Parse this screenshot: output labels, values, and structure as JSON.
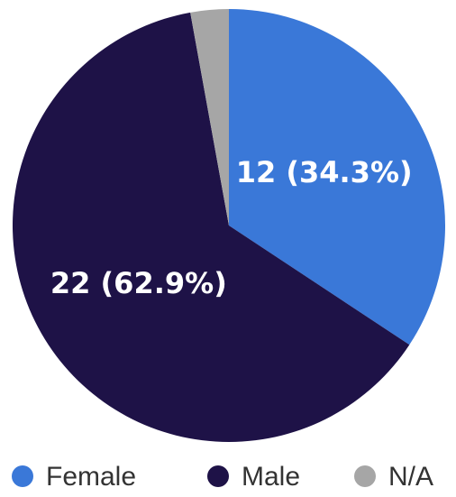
{
  "chart_data": {
    "type": "pie",
    "categories": [
      "Female",
      "Male",
      "N/A"
    ],
    "values": [
      12,
      22,
      1
    ],
    "value_labels": [
      "12 (34.3%)",
      "22 (62.9%)",
      null
    ],
    "colors": [
      "#3a78d8",
      "#1e1247",
      "#a6a6a6"
    ],
    "legend": "bottom"
  }
}
